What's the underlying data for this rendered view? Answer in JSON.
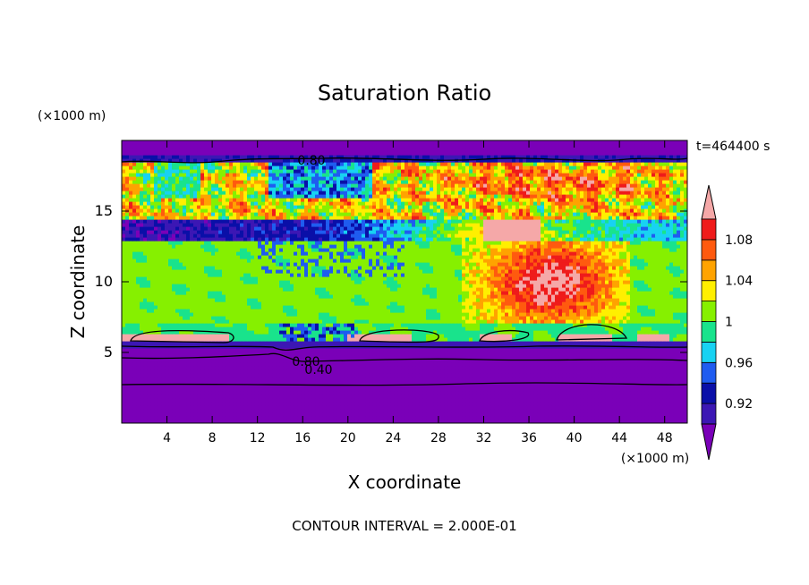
{
  "chart_data": {
    "type": "heatmap",
    "title": "Saturation Ratio",
    "xlabel": "X coordinate",
    "ylabel": "Z coordinate",
    "x_unit": "(×1000 m)",
    "y_unit": "(×1000 m)",
    "time_label": "t=464400 s",
    "footer": "CONTOUR INTERVAL = 2.000E-01",
    "xlim": [
      0,
      50
    ],
    "ylim": [
      0,
      20
    ],
    "x_ticks": [
      "4",
      "8",
      "12",
      "16",
      "20",
      "24",
      "28",
      "32",
      "36",
      "40",
      "44",
      "48"
    ],
    "y_ticks": [
      "5",
      "10",
      "15"
    ],
    "colorbar": {
      "labels": [
        "1.08",
        "1.04",
        "1",
        "0.96",
        "0.92"
      ],
      "levels": [
        0.9,
        0.92,
        0.94,
        0.96,
        0.98,
        1.0,
        1.02,
        1.04,
        1.06,
        1.08,
        1.1
      ],
      "colors": [
        "#7a00b8",
        "#3c17b4",
        "#0a0fa8",
        "#1f5cf0",
        "#18d2f2",
        "#19e38c",
        "#86f000",
        "#ffef00",
        "#ffa300",
        "#ff5a0f",
        "#ef1b1b",
        "#f5a8a8"
      ]
    },
    "contour_labels": [
      "0.80",
      "0.80",
      "0.40"
    ]
  }
}
